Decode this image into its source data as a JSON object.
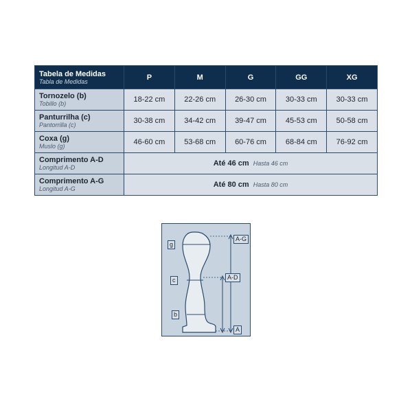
{
  "table": {
    "header": {
      "title": "Tabela de Medidas",
      "subtitle": "Tabla de Medidas",
      "sizes": [
        "P",
        "M",
        "G",
        "GG",
        "XG"
      ]
    },
    "rows": [
      {
        "label": "Tornozelo (b)",
        "sub": "Tobillo (b)",
        "cells": [
          "18-22 cm",
          "22-26 cm",
          "26-30 cm",
          "30-33 cm",
          "30-33 cm"
        ]
      },
      {
        "label": "Panturrilha (c)",
        "sub": "Pantorrilla (c)",
        "cells": [
          "30-38 cm",
          "34-42 cm",
          "39-47 cm",
          "45-53 cm",
          "50-58 cm"
        ]
      },
      {
        "label": "Coxa (g)",
        "sub": "Muslo (g)",
        "cells": [
          "46-60 cm",
          "53-68 cm",
          "60-76 cm",
          "68-84 cm",
          "76-92 cm"
        ]
      }
    ],
    "span_rows": [
      {
        "label": "Comprimento A-D",
        "sub": "Longitud A-D",
        "value": "Até 46 cm",
        "value_sub": "Hasta 46 cm"
      },
      {
        "label": "Comprimento A-G",
        "sub": "Longitud A-G",
        "value": "Até 80 cm",
        "value_sub": "Hasta 80 cm"
      }
    ],
    "colors": {
      "header_bg": "#0f2e4e",
      "header_fg": "#ffffff",
      "label_bg": "#c7d2dd",
      "cell_bg": "#d9e0e8",
      "border": "#2b4a6b",
      "text": "#1a2530"
    }
  },
  "diagram": {
    "bg": "#c7d4df",
    "stroke": "#2b4a6b",
    "fill": "#e8edf2",
    "labels": {
      "g": "g",
      "c": "c",
      "b": "b",
      "A": "A",
      "AD": "A-D",
      "AG": "A-G"
    }
  }
}
